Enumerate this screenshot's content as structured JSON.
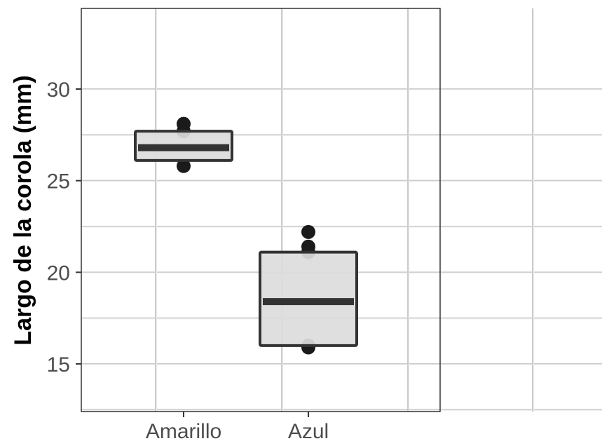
{
  "chart_data": {
    "type": "box",
    "title": "",
    "xlabel": "",
    "ylabel": "Largo de la corola (mm)",
    "ylim": [
      12.4,
      34.4
    ],
    "y_ticks": [
      15,
      20,
      25,
      30
    ],
    "categories": [
      "Amarillo",
      "Azul"
    ],
    "boxes": [
      {
        "name": "Amarillo",
        "q1": 26.1,
        "median": 26.8,
        "q3": 27.7,
        "points": [
          25.8,
          27.7,
          28.1
        ]
      },
      {
        "name": "Azul",
        "q1": 16.0,
        "median": 18.4,
        "q3": 21.1,
        "points": [
          15.9,
          16.0,
          21.1,
          21.4,
          22.2
        ]
      }
    ],
    "grid": true,
    "colors": {
      "box_fill": "#dcdcdc",
      "box_stroke": "#333333",
      "point": "#1a1a1a",
      "grid": "#cccccc"
    }
  }
}
